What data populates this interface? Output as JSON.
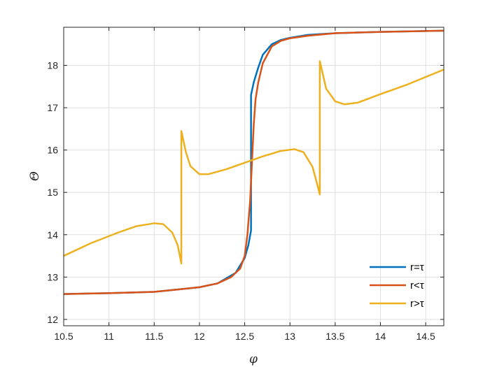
{
  "chart_data": {
    "type": "line",
    "xlabel": "φ",
    "ylabel": "Θ",
    "xlim": [
      10.5,
      14.7
    ],
    "ylim": [
      11.85,
      18.9
    ],
    "xticks": [
      10.5,
      11,
      11.5,
      12,
      12.5,
      13,
      13.5,
      14,
      14.5
    ],
    "yticks": [
      12,
      13,
      14,
      15,
      16,
      17,
      18
    ],
    "xtick_labels": [
      "10.5",
      "11",
      "11.5",
      "12",
      "12.5",
      "13",
      "13.5",
      "14",
      "14.5"
    ],
    "ytick_labels": [
      "12",
      "13",
      "14",
      "15",
      "16",
      "17",
      "18"
    ],
    "grid": true,
    "legend_position": "bottom-right",
    "series": [
      {
        "name": "r=τ",
        "color": "#0072BD",
        "x": [
          10.5,
          11.0,
          11.5,
          12.0,
          12.2,
          12.4,
          12.5,
          12.54,
          12.57,
          12.57,
          12.6,
          12.65,
          12.7,
          12.8,
          12.9,
          13.0,
          13.2,
          13.5,
          14.0,
          14.7
        ],
        "y": [
          12.6,
          12.62,
          12.65,
          12.76,
          12.85,
          13.1,
          13.45,
          13.75,
          14.1,
          17.3,
          17.6,
          17.95,
          18.25,
          18.5,
          18.6,
          18.65,
          18.72,
          18.76,
          18.79,
          18.82
        ]
      },
      {
        "name": "r<τ",
        "color": "#D95319",
        "x": [
          10.5,
          11.0,
          11.5,
          12.0,
          12.2,
          12.35,
          12.45,
          12.5,
          12.53,
          12.56,
          12.58,
          12.6,
          12.62,
          12.65,
          12.7,
          12.8,
          12.9,
          13.0,
          13.2,
          13.5,
          14.0,
          14.7
        ],
        "y": [
          12.6,
          12.62,
          12.65,
          12.76,
          12.85,
          13.0,
          13.2,
          13.5,
          14.0,
          14.8,
          15.7,
          16.6,
          17.2,
          17.6,
          18.05,
          18.45,
          18.58,
          18.64,
          18.7,
          18.76,
          18.79,
          18.82
        ]
      },
      {
        "name": "r>τ",
        "color": "#EDB120",
        "x": [
          10.5,
          10.8,
          11.1,
          11.3,
          11.5,
          11.6,
          11.7,
          11.76,
          11.8,
          11.8,
          11.85,
          11.9,
          12.0,
          12.1,
          12.3,
          12.5,
          12.7,
          12.9,
          13.05,
          13.15,
          13.25,
          13.3,
          13.33,
          13.33,
          13.4,
          13.5,
          13.6,
          13.75,
          14.0,
          14.3,
          14.7
        ],
        "y": [
          13.5,
          13.8,
          14.05,
          14.2,
          14.27,
          14.25,
          14.05,
          13.75,
          13.32,
          16.45,
          15.95,
          15.62,
          15.43,
          15.43,
          15.55,
          15.7,
          15.85,
          15.98,
          16.02,
          15.95,
          15.6,
          15.2,
          14.95,
          18.1,
          17.45,
          17.15,
          17.08,
          17.12,
          17.32,
          17.55,
          17.9
        ]
      }
    ]
  }
}
